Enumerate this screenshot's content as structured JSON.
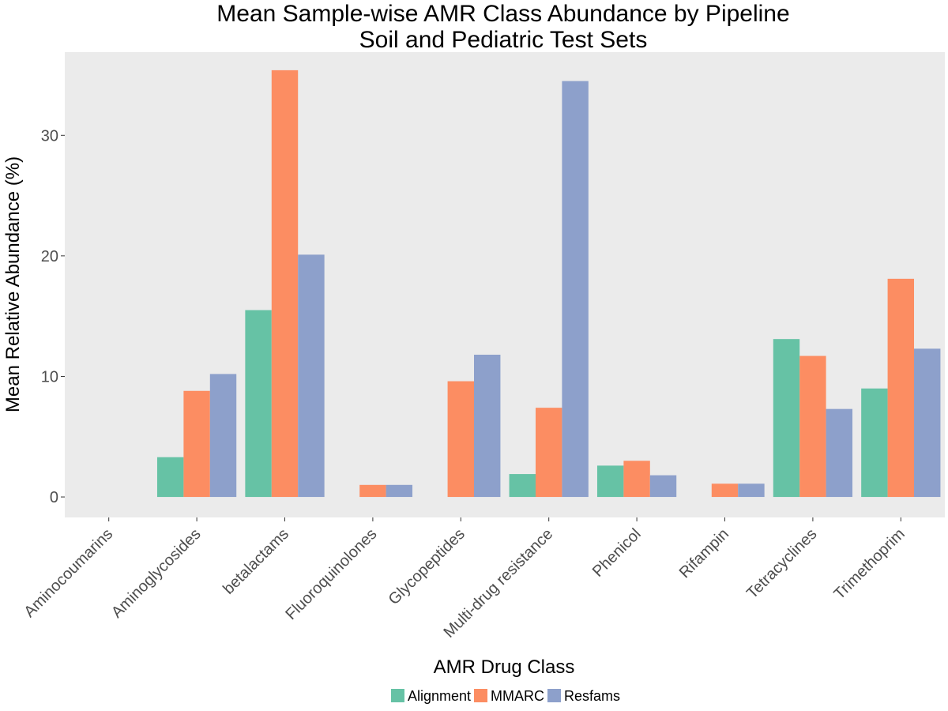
{
  "chart_data": {
    "type": "bar",
    "title": "Mean Sample-wise AMR Class Abundance by Pipeline",
    "subtitle": "Soil and Pediatric Test Sets",
    "xlabel": "AMR Drug Class",
    "ylabel": "Mean Relative Abundance (%)",
    "ylim": [
      -1.7,
      36.9
    ],
    "yticks": [
      0,
      10,
      20,
      30
    ],
    "grid": false,
    "legend_position": "bottom",
    "categories": [
      "Aminocoumarins",
      "Aminoglycosides",
      "betalactams",
      "Fluoroquinolones",
      "Glycopeptides",
      "Multi-drug resistance",
      "Phenicol",
      "Rifampin",
      "Tetracyclines",
      "Trimethoprim"
    ],
    "series": [
      {
        "name": "Alignment",
        "color": "#66c2a5",
        "values": [
          0,
          3.3,
          15.5,
          0,
          0,
          1.9,
          2.6,
          0,
          13.1,
          9.0
        ]
      },
      {
        "name": "MMARC",
        "color": "#fc8d62",
        "values": [
          0,
          8.8,
          35.4,
          1.0,
          9.6,
          7.4,
          3.0,
          1.1,
          11.7,
          18.1
        ]
      },
      {
        "name": "Resfams",
        "color": "#8da0cb",
        "values": [
          0,
          10.2,
          20.1,
          1.0,
          11.8,
          34.5,
          1.8,
          1.1,
          7.3,
          12.3
        ]
      }
    ]
  }
}
